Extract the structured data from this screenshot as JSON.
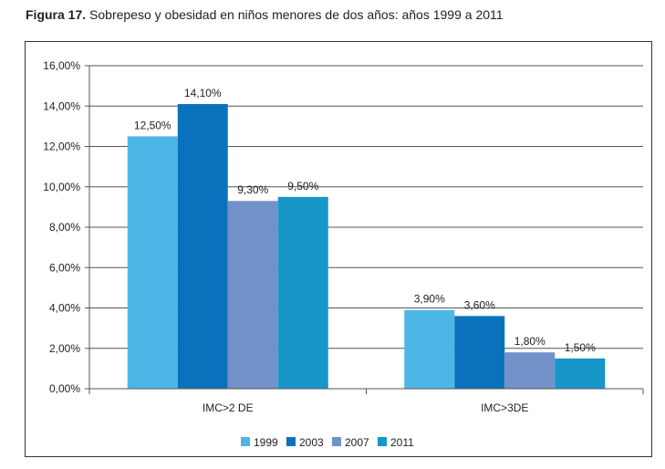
{
  "figure": {
    "label": "Figura 17.",
    "caption": "Sobrepeso y obesidad en niños menores de dos años: años 1999 a 2011"
  },
  "chart_data": {
    "type": "bar",
    "categories": [
      "IMC>2 DE",
      "IMC>3DE"
    ],
    "series": [
      {
        "name": "1999",
        "color": "#4db6e6",
        "values": [
          12.5,
          3.9
        ],
        "labels": [
          "12,50%",
          "3,90%"
        ]
      },
      {
        "name": "2003",
        "color": "#0a72bd",
        "values": [
          14.1,
          3.6
        ],
        "labels": [
          "14,10%",
          "3,60%"
        ]
      },
      {
        "name": "2007",
        "color": "#7291c8",
        "values": [
          9.3,
          1.8
        ],
        "labels": [
          "9,30%",
          "1,80%"
        ]
      },
      {
        "name": "2011",
        "color": "#1696c9",
        "values": [
          9.5,
          1.5
        ],
        "labels": [
          "9,50%",
          "1,50%"
        ]
      }
    ],
    "ylim": [
      0,
      16
    ],
    "yticks": [
      0,
      2,
      4,
      6,
      8,
      10,
      12,
      14,
      16
    ],
    "ytick_labels": [
      "0,00%",
      "2,00%",
      "4,00%",
      "6,00%",
      "8,00%",
      "10,00%",
      "12,00%",
      "14,00%",
      "16,00%"
    ],
    "grid": true,
    "legend": "bottom-center"
  }
}
